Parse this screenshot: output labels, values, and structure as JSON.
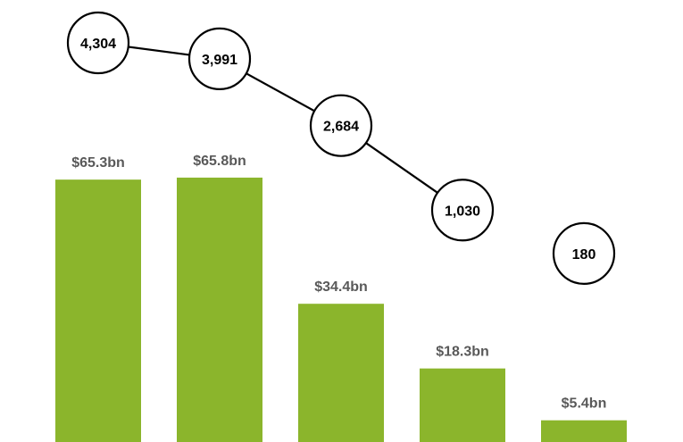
{
  "colors": {
    "bar": "#8bb52c",
    "bar_label": "#595959",
    "bubble_stroke": "#000000",
    "bubble_fill": "#ffffff",
    "line": "#000000"
  },
  "chart_data": [
    {
      "type": "bar",
      "categories": [
        "",
        "",
        "",
        "",
        ""
      ],
      "values": [
        65.3,
        65.8,
        34.4,
        18.3,
        5.4
      ],
      "labels": [
        "$65.3bn",
        "$65.8bn",
        "$34.4bn",
        "$18.3bn",
        "$5.4bn"
      ],
      "ylim": [
        0,
        110
      ],
      "grid": false,
      "legend": "none"
    },
    {
      "type": "line",
      "categories": [
        "",
        "",
        "",
        "",
        ""
      ],
      "values": [
        4304,
        3991,
        2684,
        1030,
        180
      ],
      "labels": [
        "4,304",
        "3,991",
        "2,684",
        "1,030",
        "180"
      ],
      "line_segments": [
        [
          0,
          1
        ],
        [
          1,
          2
        ],
        [
          2,
          3
        ]
      ],
      "marker": "circle",
      "grid": false,
      "legend": "none"
    }
  ]
}
